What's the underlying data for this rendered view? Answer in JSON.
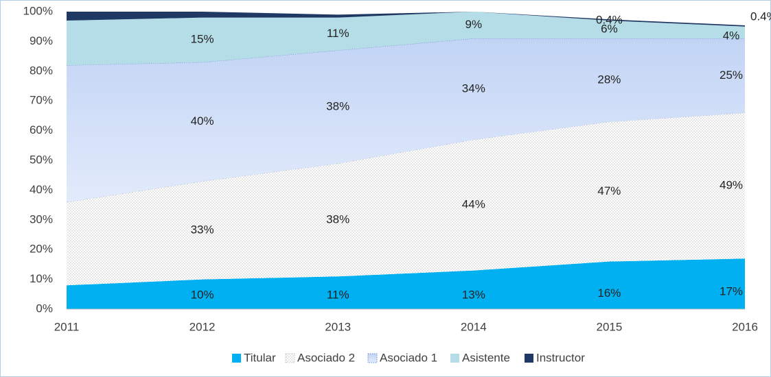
{
  "chart_data": {
    "type": "stacked_area",
    "categories": [
      "2011",
      "2012",
      "2013",
      "2014",
      "2015",
      "2016"
    ],
    "series": [
      {
        "name": "Titular",
        "color": "#00b0f0",
        "values": [
          8,
          10,
          11,
          13,
          16,
          17
        ],
        "value_labels": [
          null,
          "10%",
          "11%",
          "13%",
          "16%",
          "17%"
        ]
      },
      {
        "name": "Asociado 2",
        "color": "#bfbfbf",
        "values": [
          28,
          33,
          38,
          44,
          47,
          49
        ],
        "value_labels": [
          null,
          "33%",
          "38%",
          "44%",
          "47%",
          "49%"
        ]
      },
      {
        "name": "Asociado 1",
        "color": "#c9d9f7",
        "values": [
          46,
          40,
          38,
          34,
          28,
          25
        ],
        "value_labels": [
          null,
          "40%",
          "38%",
          "34%",
          "28%",
          "25%"
        ]
      },
      {
        "name": "Asistente",
        "color": "#b4dde7",
        "values": [
          15,
          15,
          11,
          9,
          6,
          4
        ],
        "value_labels": [
          null,
          "15%",
          "11%",
          "9%",
          "6%",
          "4%"
        ]
      },
      {
        "name": "Instructor",
        "color": "#1f3864",
        "values": [
          3,
          2,
          1,
          0,
          0.4,
          0.4
        ],
        "value_labels": [
          null,
          null,
          null,
          null,
          "0.4%",
          "0.4%"
        ]
      }
    ],
    "ylim": [
      0,
      100
    ],
    "yticks": [
      {
        "value": 0,
        "label": "0%"
      },
      {
        "value": 10,
        "label": "10%"
      },
      {
        "value": 20,
        "label": "20%"
      },
      {
        "value": 30,
        "label": "30%"
      },
      {
        "value": 40,
        "label": "40%"
      },
      {
        "value": 50,
        "label": "50%"
      },
      {
        "value": 60,
        "label": "60%"
      },
      {
        "value": 70,
        "label": "70%"
      },
      {
        "value": 80,
        "label": "80%"
      },
      {
        "value": 90,
        "label": "90%"
      },
      {
        "value": 100,
        "label": "100%"
      }
    ],
    "grid": false,
    "legend": "bottom"
  }
}
